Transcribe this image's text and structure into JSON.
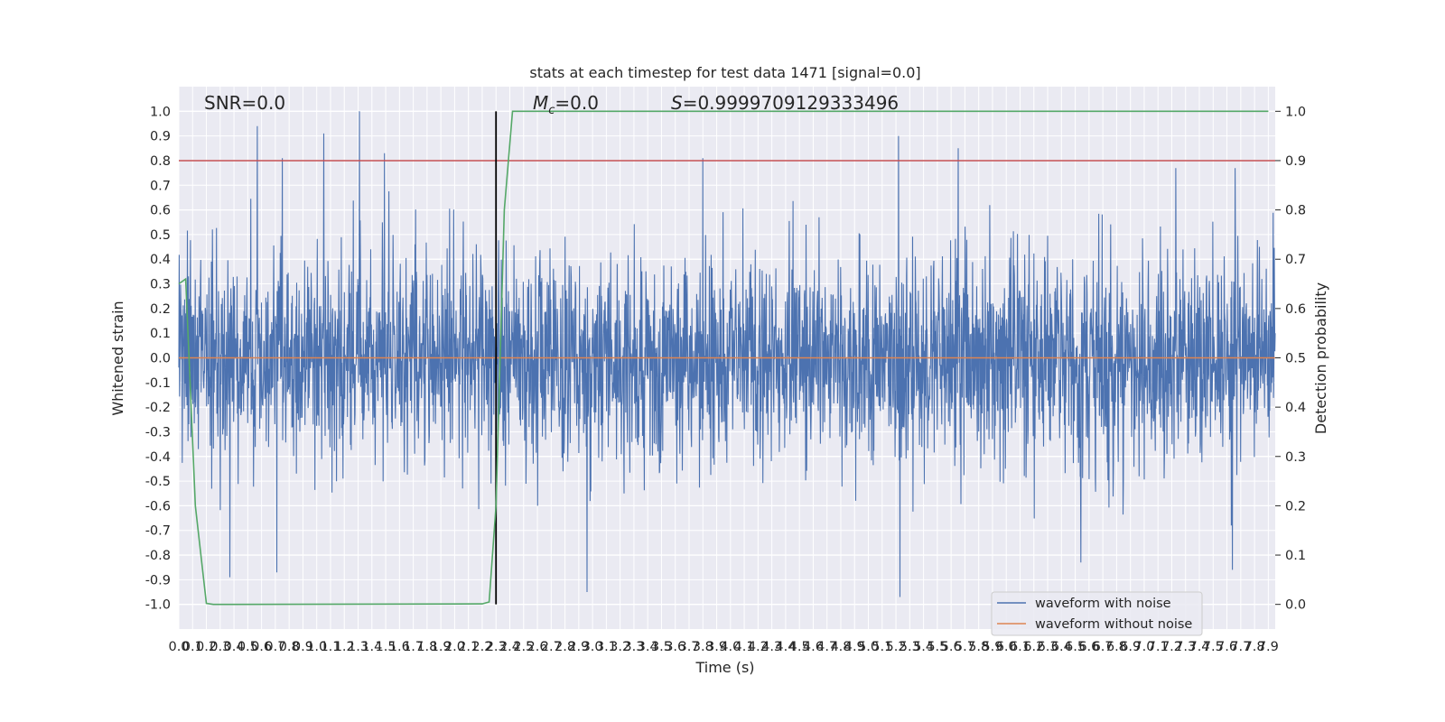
{
  "chart_data": {
    "type": "line",
    "title": "stats at each timestep for test data 1471 [signal=0.0]",
    "xlabel": "Time (s)",
    "ylabel": "Whitened strain",
    "ylabel_right": "Detection probability",
    "xlim": [
      0.0,
      7.95
    ],
    "ylim": [
      -1.1,
      1.1
    ],
    "ylim_right": [
      -0.05,
      1.05
    ],
    "x_ticks": [
      "0.0",
      "0.1",
      "0.2",
      "0.3",
      "0.4",
      "0.5",
      "0.6",
      "0.7",
      "0.8",
      "0.9",
      "1.0",
      "1.1",
      "1.2",
      "1.3",
      "1.4",
      "1.5",
      "1.6",
      "1.7",
      "1.8",
      "1.9",
      "2.0",
      "2.1",
      "2.2",
      "2.3",
      "2.4",
      "2.5",
      "2.6",
      "2.7",
      "2.8",
      "2.9",
      "3.0",
      "3.1",
      "3.2",
      "3.3",
      "3.4",
      "3.5",
      "3.6",
      "3.7",
      "3.8",
      "3.9",
      "4.0",
      "4.1",
      "4.2",
      "4.3",
      "4.4",
      "4.5",
      "4.6",
      "4.7",
      "4.8",
      "4.9",
      "5.0",
      "5.1",
      "5.2",
      "5.3",
      "5.4",
      "5.5",
      "5.6",
      "5.7",
      "5.8",
      "5.9",
      "6.0",
      "6.1",
      "6.2",
      "6.3",
      "6.4",
      "6.5",
      "6.6",
      "6.7",
      "6.8",
      "6.9",
      "7.0",
      "7.1",
      "7.2",
      "7.3",
      "7.4",
      "7.5",
      "7.6",
      "7.7",
      "7.8",
      "7.9"
    ],
    "y_ticks": [
      "1.0",
      "0.9",
      "0.8",
      "0.7",
      "0.6",
      "0.5",
      "0.4",
      "0.3",
      "0.2",
      "0.1",
      "0.0",
      "-0.1",
      "-0.2",
      "-0.3",
      "-0.4",
      "-0.5",
      "-0.6",
      "-0.7",
      "-0.8",
      "-0.9",
      "-1.0"
    ],
    "y_ticks_right": [
      "1.0",
      "0.9",
      "0.8",
      "0.7",
      "0.6",
      "0.5",
      "0.4",
      "0.3",
      "0.2",
      "0.1",
      "0.0"
    ],
    "annotations": {
      "snr": "SNR=0.0",
      "mc_symbol": "M",
      "mc_subscript": "c",
      "mc_value": "=0.0",
      "s_symbol": "S",
      "s_value": "=0.9999709129333496"
    },
    "series": [
      {
        "name": "waveform with noise",
        "color": "#4c72b0",
        "noise_envelope_note": "dense noise, mostly within ±0.4, spikes up to ~1.0 and down to ~-0.97",
        "peaks": [
          {
            "x": 0.57,
            "y": 0.94
          },
          {
            "x": 0.75,
            "y": 0.81
          },
          {
            "x": 1.05,
            "y": 0.91
          },
          {
            "x": 1.31,
            "y": 1.0
          },
          {
            "x": 1.49,
            "y": 0.83
          },
          {
            "x": 3.8,
            "y": 0.81
          },
          {
            "x": 5.22,
            "y": 0.9
          },
          {
            "x": 5.65,
            "y": 0.85
          },
          {
            "x": 7.23,
            "y": 0.77
          },
          {
            "x": 7.66,
            "y": 0.77
          }
        ],
        "troughs": [
          {
            "x": 0.37,
            "y": -0.89
          },
          {
            "x": 0.71,
            "y": -0.87
          },
          {
            "x": 2.96,
            "y": -0.95
          },
          {
            "x": 5.23,
            "y": -0.97
          },
          {
            "x": 6.54,
            "y": -0.83
          },
          {
            "x": 7.64,
            "y": -0.86
          }
        ]
      },
      {
        "name": "waveform without noise",
        "color": "#dd8452",
        "x": [
          0.0,
          7.95
        ],
        "y": [
          0.0,
          0.0
        ]
      },
      {
        "name": "",
        "axis": "right",
        "color": "#55a868",
        "x": [
          0.0,
          0.05,
          0.12,
          0.2,
          0.25,
          2.2,
          2.25,
          2.3,
          2.36,
          2.42,
          7.9
        ],
        "y": [
          0.65,
          0.66,
          0.2,
          0.002,
          0.0,
          0.001,
          0.005,
          0.2,
          0.8,
          1.0,
          1.0
        ]
      }
    ],
    "reference_lines": [
      {
        "orientation": "horizontal",
        "axis": "left",
        "value": 0.8,
        "color": "#c44e52"
      },
      {
        "orientation": "vertical",
        "value": 2.3,
        "color": "#000000",
        "range": [
          -1.0,
          1.0
        ]
      }
    ],
    "grid": true,
    "legend": {
      "placement": "lower-right",
      "entries": [
        "waveform with noise",
        "waveform without noise"
      ]
    }
  }
}
